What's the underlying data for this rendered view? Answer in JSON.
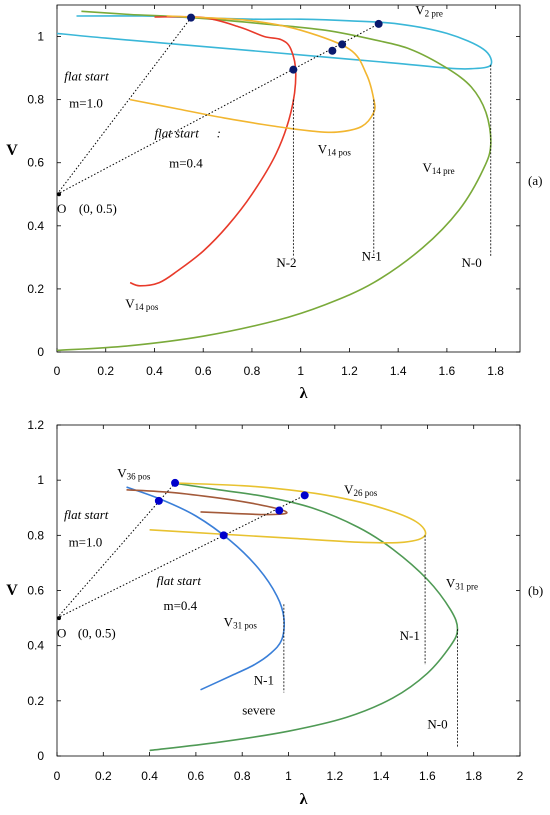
{
  "chart_data": [
    {
      "id": "a",
      "type": "line",
      "panel_label": "(a)",
      "xlabel": "λ",
      "ylabel": "V",
      "xlim": [
        0,
        1.9
      ],
      "ylim": [
        0,
        1.1
      ],
      "xticks": [
        "0",
        "0.2",
        "0.4",
        "0.6",
        "0.8",
        "1",
        "1.2",
        "1.4",
        "1.6",
        "1.8"
      ],
      "xtick_values": [
        0,
        0.2,
        0.4,
        0.6,
        0.8,
        1,
        1.2,
        1.4,
        1.6,
        1.8
      ],
      "yticks": [
        "0",
        "0.2",
        "0.4",
        "0.6",
        "0.8",
        "1"
      ],
      "ytick_values": [
        0,
        0.2,
        0.4,
        0.6,
        0.8,
        1
      ],
      "colors": {
        "cyan": "#3ab7d8",
        "green": "#7aaa3a",
        "red": "#e83a2a",
        "orange": "#f2b630",
        "marker": "#0a1a6e"
      },
      "series": [
        {
          "color": "#3ab7d8",
          "points": [
            [
              0,
              1.01
            ],
            [
              0.2,
              0.995
            ],
            [
              0.5,
              0.975
            ],
            [
              0.8,
              0.955
            ],
            [
              1.1,
              0.935
            ],
            [
              1.4,
              0.915
            ],
            [
              1.6,
              0.9
            ],
            [
              1.7,
              0.898
            ],
            [
              1.78,
              0.91
            ],
            [
              1.75,
              0.96
            ],
            [
              1.6,
              1.01
            ],
            [
              1.4,
              1.04
            ],
            [
              1.2,
              1.05
            ],
            [
              1.0,
              1.055
            ],
            [
              0.8,
              1.055
            ],
            [
              0.55,
              1.06
            ],
            [
              0.35,
              1.065
            ],
            [
              0.08,
              1.065
            ]
          ]
        },
        {
          "color": "#7aaa3a",
          "points": [
            [
              0,
              0.005
            ],
            [
              0.3,
              0.02
            ],
            [
              0.6,
              0.05
            ],
            [
              0.9,
              0.1
            ],
            [
              1.1,
              0.15
            ],
            [
              1.3,
              0.22
            ],
            [
              1.5,
              0.33
            ],
            [
              1.65,
              0.45
            ],
            [
              1.75,
              0.58
            ],
            [
              1.78,
              0.66
            ],
            [
              1.76,
              0.76
            ],
            [
              1.7,
              0.84
            ],
            [
              1.6,
              0.9
            ],
            [
              1.45,
              0.96
            ],
            [
              1.3,
              0.99
            ],
            [
              1.1,
              1.02
            ],
            [
              0.85,
              1.04
            ],
            [
              0.55,
              1.06
            ],
            [
              0.3,
              1.07
            ],
            [
              0.1,
              1.08
            ]
          ]
        },
        {
          "color": "#e83a2a",
          "points": [
            [
              0.3,
              0.22
            ],
            [
              0.34,
              0.21
            ],
            [
              0.42,
              0.22
            ],
            [
              0.5,
              0.26
            ],
            [
              0.6,
              0.32
            ],
            [
              0.7,
              0.4
            ],
            [
              0.8,
              0.5
            ],
            [
              0.9,
              0.63
            ],
            [
              0.96,
              0.76
            ],
            [
              0.98,
              0.88
            ],
            [
              0.96,
              0.96
            ],
            [
              0.92,
              0.99
            ],
            [
              0.85,
              1.0
            ],
            [
              0.75,
              1.03
            ],
            [
              0.6,
              1.06
            ],
            [
              0.4,
              1.062
            ]
          ]
        },
        {
          "color": "#f2b630",
          "points": [
            [
              0.3,
              0.8
            ],
            [
              0.5,
              0.77
            ],
            [
              0.7,
              0.74
            ],
            [
              0.9,
              0.715
            ],
            [
              1.05,
              0.7
            ],
            [
              1.15,
              0.697
            ],
            [
              1.25,
              0.715
            ],
            [
              1.3,
              0.76
            ],
            [
              1.3,
              0.8
            ],
            [
              1.27,
              0.88
            ],
            [
              1.2,
              0.96
            ],
            [
              1.0,
              1.02
            ],
            [
              0.8,
              1.05
            ],
            [
              0.6,
              1.06
            ],
            [
              0.45,
              1.065
            ]
          ]
        }
      ],
      "markers": [
        [
          0.55,
          1.06
        ],
        [
          0.97,
          0.895
        ],
        [
          1.13,
          0.955
        ],
        [
          1.17,
          0.975
        ],
        [
          1.32,
          1.04
        ]
      ],
      "lines": [
        [
          [
            0,
            0.5
          ],
          [
            0.55,
            1.06
          ]
        ],
        [
          [
            0,
            0.5
          ],
          [
            1.32,
            1.04
          ]
        ]
      ],
      "vlines": [
        [
          0.97,
          0.8,
          0.3
        ],
        [
          1.3,
          0.8,
          0.3
        ],
        [
          1.78,
          0.91,
          0.3
        ]
      ],
      "origin": [
        0,
        0.5
      ],
      "labels": [
        {
          "text": "V",
          "sub": "2 pre",
          "x": 1.47,
          "y": 1.07,
          "style": "ann"
        },
        {
          "text": "flat start",
          "x": 0.03,
          "y": 0.86,
          "style": "ann-i"
        },
        {
          "text": "m=1.0",
          "x": 0.05,
          "y": 0.775,
          "style": "ann"
        },
        {
          "text": "flat start",
          "x": 0.4,
          "y": 0.68,
          "style": "ann-i"
        },
        {
          "text": ":",
          "x": 0.655,
          "y": 0.68,
          "style": "ann-i"
        },
        {
          "text": "m=0.4",
          "x": 0.46,
          "y": 0.585,
          "style": "ann"
        },
        {
          "text": "V",
          "sub": "14 pos",
          "x": 1.07,
          "y": 0.63,
          "style": "ann"
        },
        {
          "text": "V",
          "sub": "14 pre",
          "x": 1.5,
          "y": 0.57,
          "style": "ann"
        },
        {
          "text": "O",
          "x": 0.0,
          "y": 0.44,
          "style": "ann"
        },
        {
          "text": "(0, 0.5)",
          "x": 0.09,
          "y": 0.44,
          "style": "ann"
        },
        {
          "text": "N-2",
          "x": 0.9,
          "y": 0.27,
          "style": "ann"
        },
        {
          "text": "N-1",
          "x": 1.25,
          "y": 0.29,
          "style": "ann"
        },
        {
          "text": "N-0",
          "x": 1.66,
          "y": 0.27,
          "style": "ann"
        },
        {
          "text": "V",
          "sub": "14 pos",
          "x": 0.28,
          "y": 0.14,
          "style": "ann"
        }
      ]
    },
    {
      "id": "b",
      "type": "line",
      "panel_label": "(b)",
      "xlabel": "λ",
      "ylabel": "V",
      "xlim": [
        0,
        2
      ],
      "ylim": [
        0,
        1.2
      ],
      "xticks": [
        "0",
        "0.2",
        "0.4",
        "0.6",
        "0.8",
        "1",
        "1.2",
        "1.4",
        "1.6",
        "1.8",
        "2"
      ],
      "xtick_values": [
        0,
        0.2,
        0.4,
        0.6,
        0.8,
        1,
        1.2,
        1.4,
        1.6,
        1.8,
        2
      ],
      "yticks": [
        "0",
        "0.2",
        "0.4",
        "0.6",
        "0.8",
        "1",
        "1.2"
      ],
      "ytick_values": [
        0,
        0.2,
        0.4,
        0.6,
        0.8,
        1,
        1.2
      ],
      "colors": {
        "blue": "#3a7fd8",
        "green": "#4f9a55",
        "yellow": "#e8c230",
        "brown": "#a35a3a",
        "marker": "#0000cc"
      },
      "series": [
        {
          "color": "#3a7fd8",
          "points": [
            [
              0.3,
              0.975
            ],
            [
              0.45,
              0.93
            ],
            [
              0.6,
              0.87
            ],
            [
              0.75,
              0.78
            ],
            [
              0.87,
              0.68
            ],
            [
              0.95,
              0.58
            ],
            [
              0.98,
              0.5
            ],
            [
              0.97,
              0.42
            ],
            [
              0.92,
              0.37
            ],
            [
              0.85,
              0.33
            ],
            [
              0.75,
              0.29
            ],
            [
              0.62,
              0.24
            ]
          ]
        },
        {
          "color": "#4f9a55",
          "points": [
            [
              0.4,
              0.02
            ],
            [
              0.7,
              0.05
            ],
            [
              1.0,
              0.09
            ],
            [
              1.25,
              0.14
            ],
            [
              1.45,
              0.21
            ],
            [
              1.6,
              0.3
            ],
            [
              1.7,
              0.4
            ],
            [
              1.73,
              0.46
            ],
            [
              1.7,
              0.53
            ],
            [
              1.6,
              0.64
            ],
            [
              1.45,
              0.75
            ],
            [
              1.3,
              0.83
            ],
            [
              1.1,
              0.9
            ],
            [
              0.9,
              0.94
            ],
            [
              0.7,
              0.965
            ],
            [
              0.5,
              0.99
            ]
          ]
        },
        {
          "color": "#e8c230",
          "points": [
            [
              0.4,
              0.82
            ],
            [
              0.7,
              0.805
            ],
            [
              1.0,
              0.79
            ],
            [
              1.3,
              0.775
            ],
            [
              1.5,
              0.775
            ],
            [
              1.59,
              0.8
            ],
            [
              1.55,
              0.85
            ],
            [
              1.4,
              0.9
            ],
            [
              1.2,
              0.94
            ],
            [
              1.0,
              0.965
            ],
            [
              0.8,
              0.98
            ],
            [
              0.5,
              0.99
            ]
          ]
        },
        {
          "color": "#a35a3a",
          "points": [
            [
              0.3,
              0.965
            ],
            [
              0.5,
              0.955
            ],
            [
              0.7,
              0.935
            ],
            [
              0.85,
              0.915
            ],
            [
              0.96,
              0.895
            ],
            [
              0.99,
              0.88
            ],
            [
              0.9,
              0.875
            ],
            [
              0.75,
              0.88
            ],
            [
              0.62,
              0.885
            ]
          ]
        }
      ],
      "markers": [
        [
          0.44,
          0.925
        ],
        [
          0.51,
          0.99
        ],
        [
          0.72,
          0.8
        ],
        [
          0.96,
          0.89
        ],
        [
          1.07,
          0.945
        ]
      ],
      "lines": [
        [
          [
            0,
            0.5
          ],
          [
            0.51,
            0.99
          ]
        ],
        [
          [
            0,
            0.5
          ],
          [
            1.07,
            0.945
          ]
        ]
      ],
      "vlines": [
        [
          0.98,
          0.55,
          0.23
        ],
        [
          1.59,
          0.8,
          0.33
        ],
        [
          1.73,
          0.46,
          0.03
        ]
      ],
      "origin": [
        0,
        0.5
      ],
      "labels": [
        {
          "text": "V",
          "sub": "36 pos",
          "x": 0.26,
          "y": 1.01,
          "style": "ann"
        },
        {
          "text": "V",
          "sub": "26 pos",
          "x": 1.24,
          "y": 0.95,
          "style": "ann"
        },
        {
          "text": "flat start",
          "x": 0.03,
          "y": 0.86,
          "style": "ann-i"
        },
        {
          "text": "m=1.0",
          "x": 0.05,
          "y": 0.76,
          "style": "ann"
        },
        {
          "text": "flat start",
          "x": 0.43,
          "y": 0.62,
          "style": "ann-i"
        },
        {
          "text": "m=0.4",
          "x": 0.46,
          "y": 0.53,
          "style": "ann"
        },
        {
          "text": "V",
          "sub": "31 pre",
          "x": 1.68,
          "y": 0.61,
          "style": "ann"
        },
        {
          "text": "V",
          "sub": "31 pos",
          "x": 0.72,
          "y": 0.47,
          "style": "ann"
        },
        {
          "text": "O",
          "x": 0.0,
          "y": 0.43,
          "style": "ann"
        },
        {
          "text": "(0, 0.5)",
          "x": 0.09,
          "y": 0.43,
          "style": "ann"
        },
        {
          "text": "N-1",
          "x": 1.48,
          "y": 0.42,
          "style": "ann"
        },
        {
          "text": "N-1",
          "x": 0.85,
          "y": 0.26,
          "style": "ann"
        },
        {
          "text": "severe",
          "x": 0.8,
          "y": 0.15,
          "style": "ann"
        },
        {
          "text": "N-0",
          "x": 1.6,
          "y": 0.1,
          "style": "ann"
        }
      ]
    }
  ]
}
